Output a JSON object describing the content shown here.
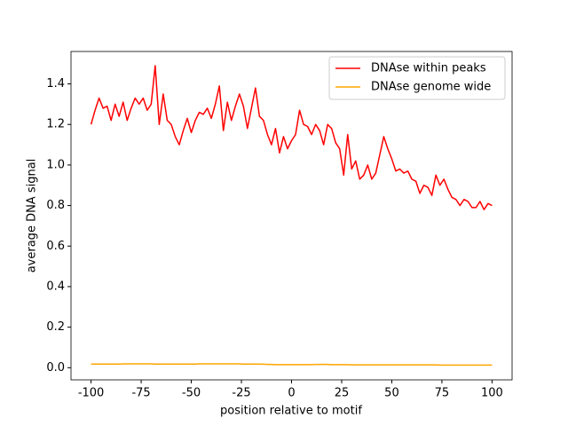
{
  "chart_data": {
    "type": "line",
    "xlabel": "position relative to motif",
    "ylabel": "average DNA signal",
    "x": [
      -100,
      -98,
      -96,
      -94,
      -92,
      -90,
      -88,
      -86,
      -84,
      -82,
      -80,
      -78,
      -76,
      -74,
      -72,
      -70,
      -68,
      -66,
      -64,
      -62,
      -60,
      -58,
      -56,
      -54,
      -52,
      -50,
      -48,
      -46,
      -44,
      -42,
      -40,
      -38,
      -36,
      -34,
      -32,
      -30,
      -28,
      -26,
      -24,
      -22,
      -20,
      -18,
      -16,
      -14,
      -12,
      -10,
      -8,
      -6,
      -4,
      -2,
      0,
      2,
      4,
      6,
      8,
      10,
      12,
      14,
      16,
      18,
      20,
      22,
      24,
      26,
      28,
      30,
      32,
      34,
      36,
      38,
      40,
      42,
      44,
      46,
      48,
      50,
      52,
      54,
      56,
      58,
      60,
      62,
      64,
      66,
      68,
      70,
      72,
      74,
      76,
      78,
      80,
      82,
      84,
      86,
      88,
      90,
      92,
      94,
      96,
      98,
      100
    ],
    "series": [
      {
        "name": "DNAse within peaks",
        "color": "#ff0000",
        "values": [
          1.2,
          1.27,
          1.33,
          1.28,
          1.29,
          1.22,
          1.3,
          1.24,
          1.31,
          1.22,
          1.28,
          1.33,
          1.3,
          1.33,
          1.27,
          1.3,
          1.49,
          1.2,
          1.35,
          1.22,
          1.2,
          1.14,
          1.1,
          1.17,
          1.23,
          1.16,
          1.22,
          1.26,
          1.25,
          1.28,
          1.23,
          1.3,
          1.39,
          1.17,
          1.31,
          1.22,
          1.29,
          1.35,
          1.29,
          1.18,
          1.28,
          1.38,
          1.24,
          1.22,
          1.15,
          1.1,
          1.18,
          1.06,
          1.14,
          1.08,
          1.12,
          1.15,
          1.27,
          1.2,
          1.19,
          1.15,
          1.2,
          1.17,
          1.1,
          1.2,
          1.18,
          1.11,
          1.08,
          0.95,
          1.15,
          0.98,
          1.02,
          0.93,
          0.95,
          1.0,
          0.93,
          0.96,
          1.05,
          1.14,
          1.08,
          1.03,
          0.97,
          0.98,
          0.96,
          0.97,
          0.93,
          0.92,
          0.86,
          0.9,
          0.89,
          0.85,
          0.95,
          0.9,
          0.93,
          0.88,
          0.84,
          0.83,
          0.8,
          0.83,
          0.82,
          0.79,
          0.79,
          0.82,
          0.78,
          0.81,
          0.8
        ]
      },
      {
        "name": "DNAse genome wide",
        "color": "#ffa500",
        "values": [
          0.018,
          0.018,
          0.018,
          0.018,
          0.018,
          0.018,
          0.018,
          0.018,
          0.019,
          0.019,
          0.019,
          0.019,
          0.019,
          0.019,
          0.019,
          0.019,
          0.018,
          0.018,
          0.018,
          0.018,
          0.018,
          0.018,
          0.018,
          0.018,
          0.018,
          0.018,
          0.018,
          0.019,
          0.019,
          0.019,
          0.019,
          0.019,
          0.019,
          0.019,
          0.019,
          0.019,
          0.019,
          0.019,
          0.018,
          0.018,
          0.018,
          0.018,
          0.018,
          0.017,
          0.016,
          0.016,
          0.015,
          0.015,
          0.015,
          0.015,
          0.015,
          0.015,
          0.015,
          0.015,
          0.015,
          0.015,
          0.016,
          0.016,
          0.016,
          0.016,
          0.015,
          0.015,
          0.015,
          0.015,
          0.015,
          0.014,
          0.014,
          0.014,
          0.014,
          0.014,
          0.014,
          0.014,
          0.014,
          0.014,
          0.014,
          0.014,
          0.014,
          0.014,
          0.014,
          0.014,
          0.014,
          0.014,
          0.014,
          0.014,
          0.014,
          0.014,
          0.014,
          0.013,
          0.013,
          0.013,
          0.013,
          0.013,
          0.013,
          0.013,
          0.013,
          0.013,
          0.013,
          0.013,
          0.013,
          0.013,
          0.013
        ]
      }
    ],
    "xlim": [
      -110,
      110
    ],
    "ylim": [
      -0.06,
      1.56
    ],
    "xticks": [
      -100,
      -75,
      -50,
      -25,
      0,
      25,
      50,
      75,
      100
    ],
    "yticks": [
      {
        "value": 0,
        "label": "0.0"
      },
      {
        "value": 0.2,
        "label": "0.2"
      },
      {
        "value": 0.4,
        "label": "0.4"
      },
      {
        "value": 0.6,
        "label": "0.6"
      },
      {
        "value": 0.8,
        "label": "0.8"
      },
      {
        "value": 1.0,
        "label": "1.0"
      },
      {
        "value": 1.2,
        "label": "1.2"
      },
      {
        "value": 1.4,
        "label": "1.4"
      }
    ],
    "legend": "upper right"
  }
}
